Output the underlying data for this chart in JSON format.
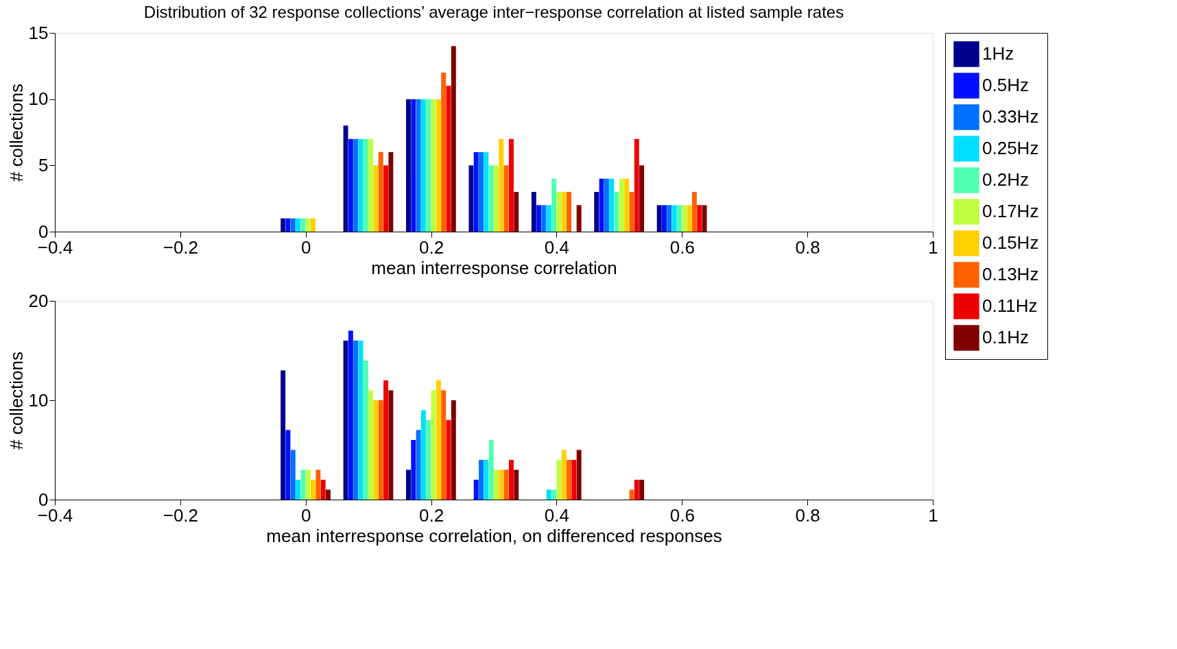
{
  "chart_data": [
    {
      "type": "bar",
      "title": "Distribution of 32 response collections’ average inter−response correlation at listed sample rates",
      "xlabel": "mean interresponse correlation",
      "ylabel": "# collections",
      "x": [
        -0.4,
        -0.3,
        -0.2,
        -0.1,
        0,
        0.1,
        0.2,
        0.3,
        0.4,
        0.5,
        0.6,
        0.7,
        0.8,
        0.9,
        1
      ],
      "xlim": [
        -0.4,
        1
      ],
      "xticks": [
        -0.4,
        -0.2,
        0,
        0.2,
        0.4,
        0.6,
        0.8,
        1
      ],
      "ylim": [
        0,
        15
      ],
      "yticks": [
        0,
        5,
        10,
        15
      ],
      "grid": false,
      "legend": "right",
      "series": [
        {
          "name": "1Hz",
          "color": "#00008f",
          "values": [
            0,
            0,
            0,
            0,
            1,
            8,
            10,
            5,
            3,
            3,
            2,
            0,
            0,
            0,
            0
          ]
        },
        {
          "name": "0.5Hz",
          "color": "#0010ff",
          "values": [
            0,
            0,
            0,
            0,
            1,
            7,
            10,
            6,
            2,
            4,
            2,
            0,
            0,
            0,
            0
          ]
        },
        {
          "name": "0.33Hz",
          "color": "#0070ff",
          "values": [
            0,
            0,
            0,
            0,
            1,
            7,
            10,
            6,
            2,
            4,
            2,
            0,
            0,
            0,
            0
          ]
        },
        {
          "name": "0.25Hz",
          "color": "#00dfff",
          "values": [
            0,
            0,
            0,
            0,
            1,
            7,
            10,
            6,
            2,
            4,
            2,
            0,
            0,
            0,
            0
          ]
        },
        {
          "name": "0.2Hz",
          "color": "#50ffaf",
          "values": [
            0,
            0,
            0,
            0,
            1,
            7,
            10,
            5,
            4,
            3,
            2,
            0,
            0,
            0,
            0
          ]
        },
        {
          "name": "0.17Hz",
          "color": "#bfff40",
          "values": [
            0,
            0,
            0,
            0,
            1,
            7,
            10,
            5,
            3,
            4,
            2,
            0,
            0,
            0,
            0
          ]
        },
        {
          "name": "0.15Hz",
          "color": "#ffcf00",
          "values": [
            0,
            0,
            0,
            0,
            1,
            5,
            10,
            7,
            3,
            4,
            2,
            0,
            0,
            0,
            0
          ]
        },
        {
          "name": "0.13Hz",
          "color": "#ff6000",
          "values": [
            0,
            0,
            0,
            0,
            0,
            6,
            12,
            5,
            3,
            3,
            3,
            0,
            0,
            0,
            0
          ]
        },
        {
          "name": "0.11Hz",
          "color": "#ef0000",
          "values": [
            0,
            0,
            0,
            0,
            0,
            5,
            11,
            7,
            0,
            7,
            2,
            0,
            0,
            0,
            0
          ]
        },
        {
          "name": "0.1Hz",
          "color": "#800000",
          "values": [
            0,
            0,
            0,
            0,
            0,
            6,
            14,
            3,
            2,
            5,
            2,
            0,
            0,
            0,
            0
          ]
        }
      ]
    },
    {
      "type": "bar",
      "xlabel": "mean interresponse correlation, on differenced responses",
      "ylabel": "# collections",
      "x": [
        -0.4,
        -0.3,
        -0.2,
        -0.1,
        0,
        0.1,
        0.2,
        0.3,
        0.4,
        0.5,
        0.6,
        0.7,
        0.8,
        0.9,
        1
      ],
      "xlim": [
        -0.4,
        1
      ],
      "xticks": [
        -0.4,
        -0.2,
        0,
        0.2,
        0.4,
        0.6,
        0.8,
        1
      ],
      "ylim": [
        0,
        20
      ],
      "yticks": [
        0,
        10,
        20
      ],
      "grid": false,
      "series": [
        {
          "name": "1Hz",
          "color": "#00008f",
          "values": [
            0,
            0,
            0,
            0,
            13,
            16,
            3,
            0,
            0,
            0,
            0,
            0,
            0,
            0,
            0
          ]
        },
        {
          "name": "0.5Hz",
          "color": "#0010ff",
          "values": [
            0,
            0,
            0,
            0,
            7,
            17,
            6,
            2,
            0,
            0,
            0,
            0,
            0,
            0,
            0
          ]
        },
        {
          "name": "0.33Hz",
          "color": "#0070ff",
          "values": [
            0,
            0,
            0,
            0,
            5,
            16,
            7,
            4,
            0,
            0,
            0,
            0,
            0,
            0,
            0
          ]
        },
        {
          "name": "0.25Hz",
          "color": "#00dfff",
          "values": [
            0,
            0,
            0,
            0,
            2,
            16,
            9,
            4,
            1,
            0,
            0,
            0,
            0,
            0,
            0
          ]
        },
        {
          "name": "0.2Hz",
          "color": "#50ffaf",
          "values": [
            0,
            0,
            0,
            0,
            3,
            14,
            8,
            6,
            1,
            0,
            0,
            0,
            0,
            0,
            0
          ]
        },
        {
          "name": "0.17Hz",
          "color": "#bfff40",
          "values": [
            0,
            0,
            0,
            0,
            3,
            11,
            11,
            3,
            4,
            0,
            0,
            0,
            0,
            0,
            0
          ]
        },
        {
          "name": "0.15Hz",
          "color": "#ffcf00",
          "values": [
            0,
            0,
            0,
            0,
            2,
            10,
            12,
            3,
            5,
            0,
            0,
            0,
            0,
            0,
            0
          ]
        },
        {
          "name": "0.13Hz",
          "color": "#ff6000",
          "values": [
            0,
            0,
            0,
            0,
            3,
            10,
            11,
            3,
            4,
            1,
            0,
            0,
            0,
            0,
            0
          ]
        },
        {
          "name": "0.11Hz",
          "color": "#ef0000",
          "values": [
            0,
            0,
            0,
            0,
            2,
            12,
            8,
            4,
            4,
            2,
            0,
            0,
            0,
            0,
            0
          ]
        },
        {
          "name": "0.1Hz",
          "color": "#800000",
          "values": [
            0,
            0,
            0,
            0,
            1,
            11,
            10,
            3,
            5,
            2,
            0,
            0,
            0,
            0,
            0
          ]
        }
      ]
    }
  ]
}
